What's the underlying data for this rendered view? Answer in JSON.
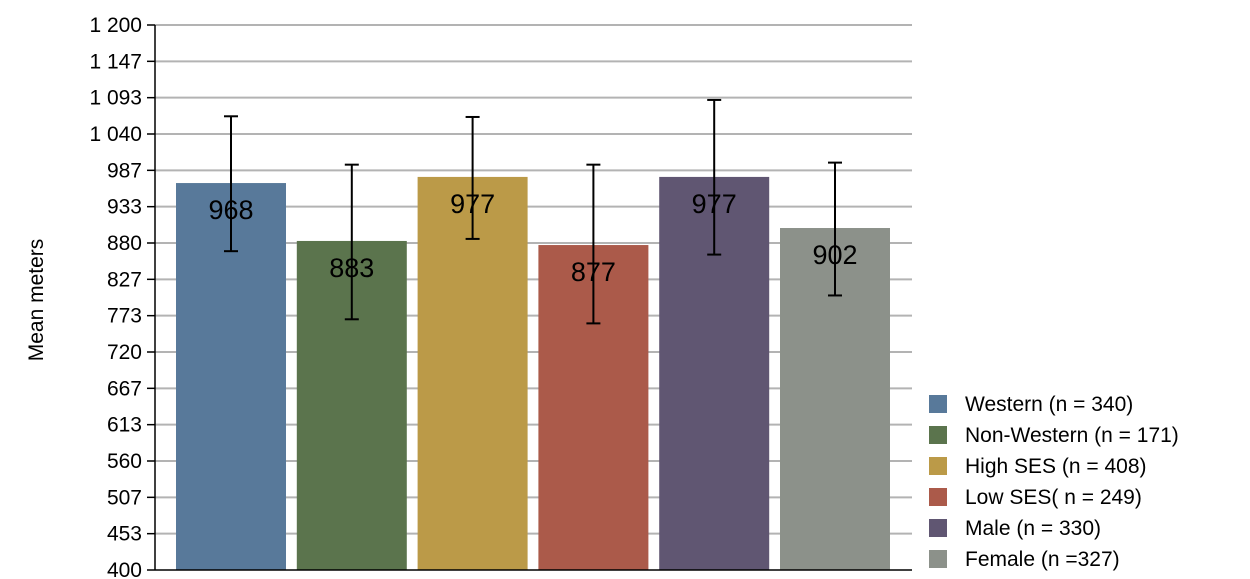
{
  "chart_data": {
    "type": "bar",
    "ylabel": "Mean meters",
    "ylim": [
      400,
      1200
    ],
    "y_ticks": [
      "1 200",
      "1 147",
      "1 093",
      "1 040",
      "987",
      "933",
      "880",
      "827",
      "773",
      "720",
      "667",
      "613",
      "560",
      "507",
      "453",
      "400"
    ],
    "grid": true,
    "legend_position": "bottom-right",
    "series": [
      {
        "name": "Western (n = 340)",
        "value": 968,
        "label": "968",
        "err_low": 868,
        "err_high": 1066,
        "color": "#58799a"
      },
      {
        "name": "Non-Western (n = 171)",
        "value": 883,
        "label": "883",
        "err_low": 768,
        "err_high": 995,
        "color": "#5b744d"
      },
      {
        "name": "High SES (n = 408)",
        "value": 977,
        "label": "977",
        "err_low": 886,
        "err_high": 1065,
        "color": "#bb9a48"
      },
      {
        "name": "Low SES( n = 249)",
        "value": 877,
        "label": "877",
        "err_low": 762,
        "err_high": 995,
        "color": "#ab5a4a"
      },
      {
        "name": "Male (n = 330)",
        "value": 977,
        "label": "977",
        "err_low": 863,
        "err_high": 1090,
        "color": "#605672"
      },
      {
        "name": "Female (n =327)",
        "value": 902,
        "label": "902",
        "err_low": 803,
        "err_high": 998,
        "color": "#8c918a"
      }
    ]
  }
}
